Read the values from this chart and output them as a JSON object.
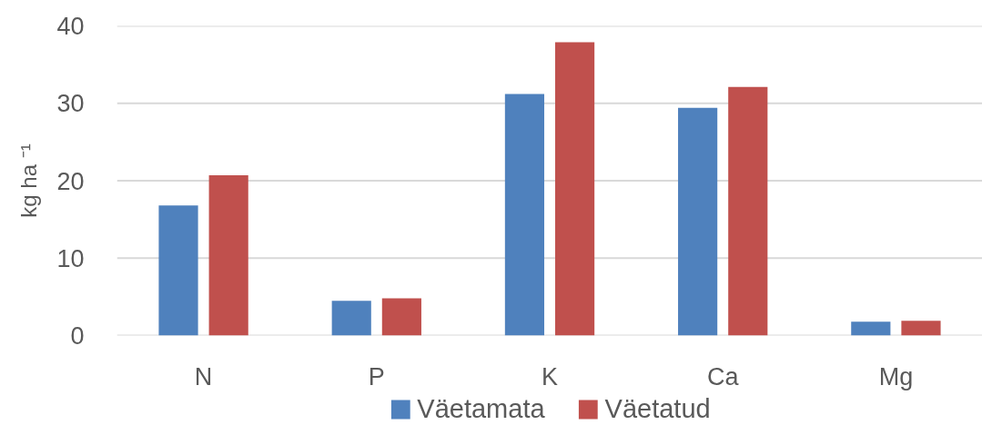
{
  "chart_data": {
    "type": "bar",
    "ylabel": "kg ha ⁻¹",
    "categories": [
      "N",
      "P",
      "K",
      "Ca",
      "Mg"
    ],
    "series": [
      {
        "name": "Väetamata",
        "color": "#4f81bd",
        "values": [
          16.8,
          4.5,
          31.2,
          29.4,
          1.8
        ]
      },
      {
        "name": "Väetatud",
        "color": "#c0504d",
        "values": [
          20.7,
          4.8,
          37.9,
          32.1,
          1.9
        ]
      }
    ],
    "ylim": [
      0,
      40
    ],
    "yticks": [
      0,
      10,
      20,
      30,
      40
    ],
    "grid": "y",
    "legend": "bottom"
  }
}
